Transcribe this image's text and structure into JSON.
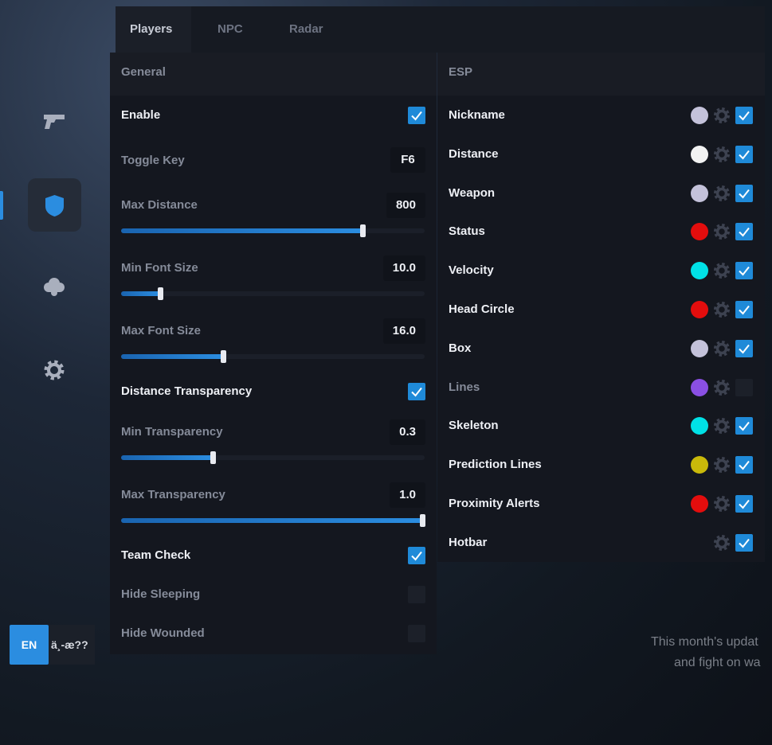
{
  "tabs": [
    "Players",
    "NPC",
    "Radar"
  ],
  "general": {
    "title": "General",
    "items": [
      {
        "label": "Enable",
        "kind": "checkbox",
        "checked": true
      },
      {
        "label": "Toggle Key",
        "kind": "key",
        "value": "F6"
      },
      {
        "label": "Max Distance",
        "kind": "slider",
        "value": "800"
      },
      {
        "label": "Min Font Size",
        "kind": "slider",
        "value": "10.0"
      },
      {
        "label": "Max Font Size",
        "kind": "slider",
        "value": "16.0"
      },
      {
        "label": "Distance Transparency",
        "kind": "checkbox",
        "checked": true
      },
      {
        "label": "Min Transparency",
        "kind": "slider",
        "value": "0.3"
      },
      {
        "label": "Max Transparency",
        "kind": "slider",
        "value": "1.0"
      },
      {
        "label": "Team Check",
        "kind": "checkbox",
        "checked": true
      },
      {
        "label": "Hide Sleeping",
        "kind": "checkbox",
        "checked": false
      },
      {
        "label": "Hide Wounded",
        "kind": "checkbox",
        "checked": false
      }
    ]
  },
  "esp": {
    "title": "ESP",
    "items": [
      {
        "label": "Nickname",
        "color": "#c4c2da",
        "checked": true
      },
      {
        "label": "Distance",
        "color": "#f2f2f2",
        "checked": true
      },
      {
        "label": "Weapon",
        "color": "#c4c2da",
        "checked": true
      },
      {
        "label": "Status",
        "color": "#e30d0d",
        "checked": true
      },
      {
        "label": "Velocity",
        "color": "#00e1e6",
        "checked": true
      },
      {
        "label": "Head Circle",
        "color": "#e30d0d",
        "checked": true
      },
      {
        "label": "Box",
        "color": "#c4c2da",
        "checked": true
      },
      {
        "label": "Lines",
        "color": "#8a4fe3",
        "checked": false
      },
      {
        "label": "Skeleton",
        "color": "#00e1e6",
        "checked": true
      },
      {
        "label": "Prediction Lines",
        "color": "#c9b90a",
        "checked": true
      },
      {
        "label": "Proximity Alerts",
        "color": "#e30d0d",
        "checked": true
      },
      {
        "label": "Hotbar",
        "checked": true
      }
    ]
  },
  "language": {
    "active": "EN",
    "other": "ä¸-æ??"
  },
  "background_text": [
    "This month's updat",
    "and fight on wa"
  ]
}
